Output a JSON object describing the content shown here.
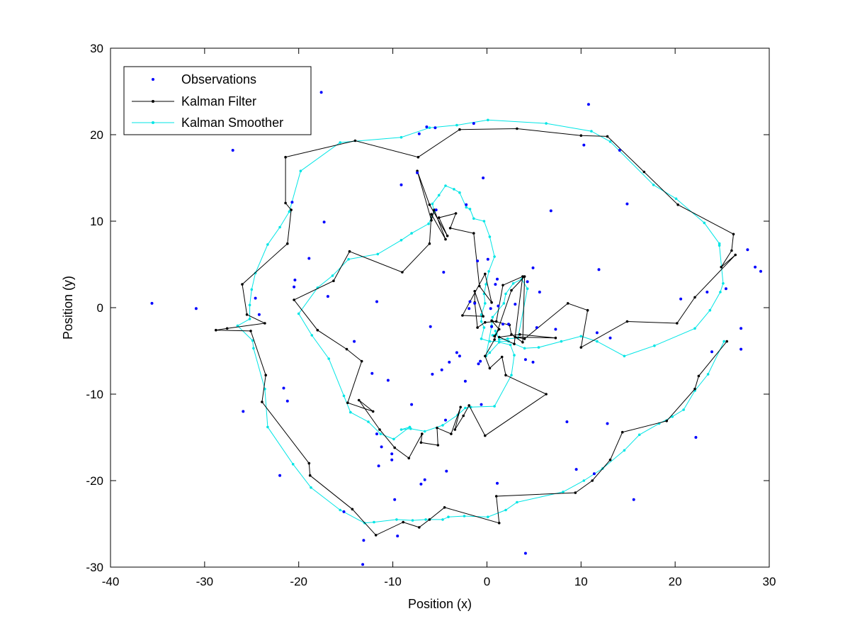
{
  "chart_data": {
    "type": "scatter",
    "xlabel": "Position (x)",
    "ylabel": "Position (y)",
    "xlim": [
      -40,
      30
    ],
    "ylim": [
      -30,
      30
    ],
    "xticks": [
      -40,
      -30,
      -20,
      -10,
      0,
      10,
      20,
      30
    ],
    "yticks": [
      -30,
      -20,
      -10,
      0,
      10,
      20,
      30
    ],
    "grid": false,
    "legend_position": "top-left",
    "legend": [
      "Observations",
      "Kalman Filter",
      "Kalman Smoother"
    ],
    "colors": {
      "observations": "#0000ff",
      "filter": "#000000",
      "smoother": "#00e5e5"
    },
    "observations": [
      [
        -35.6,
        0.5
      ],
      [
        -30.9,
        -0.1
      ],
      [
        -27.0,
        18.2
      ],
      [
        -25.9,
        -12.0
      ],
      [
        -24.6,
        1.1
      ],
      [
        -24.2,
        -0.8
      ],
      [
        -22.0,
        -19.4
      ],
      [
        -21.6,
        -9.3
      ],
      [
        -21.2,
        -10.8
      ],
      [
        -20.7,
        12.2
      ],
      [
        -20.4,
        3.2
      ],
      [
        -20.5,
        2.4
      ],
      [
        -18.9,
        5.7
      ],
      [
        -17.6,
        24.9
      ],
      [
        -17.3,
        9.9
      ],
      [
        -16.9,
        1.3
      ],
      [
        -15.2,
        -23.6
      ],
      [
        -14.1,
        -3.9
      ],
      [
        -13.2,
        -29.7
      ],
      [
        -13.1,
        -26.9
      ],
      [
        -12.2,
        -7.6
      ],
      [
        -11.7,
        -14.6
      ],
      [
        -11.7,
        0.7
      ],
      [
        -11.5,
        -18.3
      ],
      [
        -11.2,
        -16.1
      ],
      [
        -10.5,
        -8.4
      ],
      [
        -10.1,
        -17.6
      ],
      [
        -10.1,
        -16.9
      ],
      [
        -9.8,
        -22.2
      ],
      [
        -9.5,
        -26.4
      ],
      [
        -9.1,
        14.2
      ],
      [
        -8.0,
        -11.2
      ],
      [
        -7.4,
        15.6
      ],
      [
        -7.2,
        20.1
      ],
      [
        -7.0,
        -20.4
      ],
      [
        -6.6,
        -19.9
      ],
      [
        -6.4,
        20.9
      ],
      [
        -6.0,
        -2.2
      ],
      [
        -5.8,
        -7.7
      ],
      [
        -5.5,
        20.8
      ],
      [
        -5.4,
        11.3
      ],
      [
        -4.8,
        -7.2
      ],
      [
        -4.6,
        4.1
      ],
      [
        -4.4,
        -13.0
      ],
      [
        -4.3,
        -18.9
      ],
      [
        -4.0,
        -6.3
      ],
      [
        -3.2,
        -5.2
      ],
      [
        -2.9,
        -5.6
      ],
      [
        -2.3,
        -8.5
      ],
      [
        -2.2,
        11.9
      ],
      [
        -1.9,
        -0.1
      ],
      [
        -1.8,
        0.7
      ],
      [
        -1.4,
        21.3
      ],
      [
        -1.3,
        0.5
      ],
      [
        -1.0,
        5.4
      ],
      [
        -0.9,
        -6.5
      ],
      [
        -0.7,
        -6.2
      ],
      [
        -0.6,
        -11.2
      ],
      [
        -0.4,
        15.0
      ],
      [
        0.1,
        5.6
      ],
      [
        0.4,
        -0.1
      ],
      [
        0.5,
        -2.2
      ],
      [
        0.9,
        2.7
      ],
      [
        1.1,
        3.3
      ],
      [
        1.1,
        -20.3
      ],
      [
        1.2,
        0.2
      ],
      [
        1.7,
        -1.9
      ],
      [
        2.3,
        -1.9
      ],
      [
        3.0,
        0.4
      ],
      [
        4.1,
        -28.4
      ],
      [
        4.1,
        -6.0
      ],
      [
        4.3,
        3.0
      ],
      [
        4.9,
        4.6
      ],
      [
        4.9,
        -6.3
      ],
      [
        5.3,
        -2.3
      ],
      [
        5.6,
        1.8
      ],
      [
        6.8,
        11.2
      ],
      [
        7.3,
        -2.5
      ],
      [
        8.5,
        -13.2
      ],
      [
        9.5,
        -18.7
      ],
      [
        10.3,
        18.8
      ],
      [
        10.8,
        23.5
      ],
      [
        11.4,
        -19.2
      ],
      [
        11.7,
        -2.9
      ],
      [
        11.9,
        4.4
      ],
      [
        12.8,
        -13.4
      ],
      [
        13.1,
        -3.5
      ],
      [
        14.1,
        18.2
      ],
      [
        14.9,
        12.0
      ],
      [
        15.6,
        -22.2
      ],
      [
        20.6,
        1.0
      ],
      [
        22.2,
        -15.0
      ],
      [
        23.4,
        1.8
      ],
      [
        23.9,
        -5.1
      ],
      [
        25.4,
        2.2
      ],
      [
        27.0,
        -2.4
      ],
      [
        27.0,
        -4.8
      ],
      [
        27.7,
        6.7
      ],
      [
        28.5,
        4.7
      ],
      [
        29.1,
        4.2
      ]
    ],
    "filter": [
      [
        0.8,
        -3.3
      ],
      [
        1.3,
        -2.5
      ],
      [
        0.5,
        -1.5
      ],
      [
        2.4,
        -2.0
      ],
      [
        2.6,
        -3.1
      ],
      [
        3.8,
        -4.0
      ],
      [
        4.0,
        3.6
      ],
      [
        2.6,
        2.0
      ],
      [
        0.8,
        -3.7
      ],
      [
        -0.2,
        -5.6
      ],
      [
        0.3,
        -7.0
      ],
      [
        1.6,
        -5.7
      ],
      [
        2.0,
        -7.8
      ],
      [
        6.3,
        -10.0
      ],
      [
        -0.2,
        -14.8
      ],
      [
        -1.9,
        -11.3
      ],
      [
        -2.5,
        -12.5
      ],
      [
        -3.4,
        -14.1
      ],
      [
        -2.8,
        -11.5
      ],
      [
        -3.8,
        -14.6
      ],
      [
        -5.3,
        -13.9
      ],
      [
        -5.2,
        -15.9
      ],
      [
        -7.0,
        -15.6
      ],
      [
        -6.9,
        -14.6
      ],
      [
        -8.3,
        -17.4
      ],
      [
        -9.8,
        -16.2
      ],
      [
        -11.4,
        -14.1
      ],
      [
        -13.6,
        -10.7
      ],
      [
        -12.1,
        -12.0
      ],
      [
        -14.8,
        -11.0
      ],
      [
        -13.3,
        -6.2
      ],
      [
        -14.9,
        -4.8
      ],
      [
        -18.0,
        -2.6
      ],
      [
        -20.5,
        0.9
      ],
      [
        -16.3,
        3.1
      ],
      [
        -14.6,
        6.5
      ],
      [
        -9.0,
        4.1
      ],
      [
        -6.1,
        7.4
      ],
      [
        -5.9,
        10.8
      ],
      [
        -4.4,
        7.9
      ],
      [
        -5.6,
        11.3
      ],
      [
        -5.9,
        10.1
      ],
      [
        -7.4,
        15.8
      ],
      [
        -6.1,
        11.9
      ],
      [
        -4.2,
        8.3
      ],
      [
        -5.1,
        10.4
      ],
      [
        -3.3,
        10.9
      ],
      [
        -3.9,
        9.2
      ],
      [
        -1.4,
        8.6
      ],
      [
        -0.8,
        2.5
      ],
      [
        0.5,
        0.6
      ],
      [
        -0.2,
        3.9
      ],
      [
        -2.6,
        -0.9
      ],
      [
        -0.4,
        -1.0
      ],
      [
        -1.3,
        1.9
      ],
      [
        -1.3,
        0.6
      ],
      [
        -1.0,
        -2.3
      ],
      [
        -0.2,
        -1.7
      ],
      [
        1.0,
        -1.6
      ],
      [
        1.7,
        2.6
      ],
      [
        3.8,
        3.6
      ],
      [
        2.9,
        -4.2
      ],
      [
        1.3,
        -3.4
      ],
      [
        3.5,
        -3.1
      ],
      [
        7.3,
        -3.5
      ],
      [
        3.0,
        -3.4
      ],
      [
        4.0,
        -3.6
      ],
      [
        8.6,
        0.5
      ],
      [
        10.7,
        -0.3
      ],
      [
        10.0,
        -4.6
      ],
      [
        14.9,
        -1.6
      ],
      [
        20.2,
        -1.8
      ],
      [
        22.1,
        1.2
      ],
      [
        26.4,
        6.1
      ],
      [
        24.9,
        4.7
      ],
      [
        26.0,
        6.6
      ],
      [
        26.2,
        8.5
      ],
      [
        20.3,
        11.9
      ],
      [
        16.7,
        15.7
      ],
      [
        12.8,
        19.8
      ],
      [
        10.0,
        19.9
      ],
      [
        3.2,
        20.7
      ],
      [
        -2.9,
        20.6
      ],
      [
        -7.3,
        17.4
      ],
      [
        -14.0,
        19.3
      ],
      [
        -21.4,
        17.4
      ],
      [
        -21.4,
        12.1
      ],
      [
        -20.8,
        11.3
      ],
      [
        -21.2,
        7.4
      ],
      [
        -26.0,
        2.7
      ],
      [
        -25.5,
        -0.8
      ],
      [
        -23.6,
        -1.8
      ],
      [
        -27.6,
        -2.4
      ],
      [
        -28.8,
        -2.6
      ],
      [
        -25.1,
        -2.7
      ],
      [
        -23.5,
        -7.8
      ],
      [
        -23.9,
        -10.9
      ],
      [
        -18.9,
        -18.0
      ],
      [
        -18.8,
        -19.4
      ],
      [
        -14.3,
        -23.3
      ],
      [
        -11.8,
        -26.3
      ],
      [
        -8.9,
        -24.8
      ],
      [
        -7.2,
        -25.4
      ],
      [
        -6.1,
        -24.5
      ],
      [
        -4.5,
        -23.1
      ],
      [
        1.3,
        -24.9
      ],
      [
        1.0,
        -21.8
      ],
      [
        9.4,
        -21.4
      ],
      [
        11.2,
        -20.0
      ],
      [
        13.1,
        -17.6
      ],
      [
        14.4,
        -14.4
      ],
      [
        19.1,
        -13.1
      ],
      [
        22.1,
        -9.4
      ],
      [
        22.5,
        -7.9
      ],
      [
        25.5,
        -3.9
      ]
    ],
    "smoother": [
      [
        0.6,
        -3.2
      ],
      [
        1.0,
        -3.0
      ],
      [
        0.9,
        -2.7
      ],
      [
        1.3,
        -3.7
      ],
      [
        2.2,
        -3.6
      ],
      [
        3.3,
        -3.5
      ],
      [
        4.3,
        2.2
      ],
      [
        3.7,
        3.3
      ],
      [
        2.8,
        2.8
      ],
      [
        2.0,
        1.6
      ],
      [
        1.8,
        0.5
      ],
      [
        0.6,
        -1.1
      ],
      [
        0.5,
        -2.1
      ],
      [
        -0.1,
        -5.6
      ],
      [
        0.3,
        -5.2
      ],
      [
        1.3,
        -4.0
      ],
      [
        2.5,
        -4.3
      ],
      [
        2.9,
        -5.5
      ],
      [
        2.6,
        -7.8
      ],
      [
        0.8,
        -11.4
      ],
      [
        -1.7,
        -11.5
      ],
      [
        -2.3,
        -11.6
      ],
      [
        -3.1,
        -12.4
      ],
      [
        -4.7,
        -13.6
      ],
      [
        -6.6,
        -14.3
      ],
      [
        -8.1,
        -14.0
      ],
      [
        -9.1,
        -14.1
      ],
      [
        -8.2,
        -13.8
      ],
      [
        -9.9,
        -15.2
      ],
      [
        -11.3,
        -14.6
      ],
      [
        -12.6,
        -13.2
      ],
      [
        -14.5,
        -12.1
      ],
      [
        -15.2,
        -10.2
      ],
      [
        -16.8,
        -5.9
      ],
      [
        -18.6,
        -3.2
      ],
      [
        -20.0,
        -0.7
      ],
      [
        -18.0,
        2.3
      ],
      [
        -16.4,
        3.7
      ],
      [
        -14.7,
        5.6
      ],
      [
        -11.6,
        6.2
      ],
      [
        -9.1,
        7.8
      ],
      [
        -8.0,
        8.6
      ],
      [
        -6.2,
        9.7
      ],
      [
        -5.6,
        11.1
      ],
      [
        -5.8,
        12.0
      ],
      [
        -5.1,
        13.0
      ],
      [
        -4.4,
        14.1
      ],
      [
        -3.5,
        13.7
      ],
      [
        -2.9,
        13.3
      ],
      [
        -2.2,
        11.6
      ],
      [
        -1.8,
        11.4
      ],
      [
        -1.4,
        10.3
      ],
      [
        -0.3,
        10.0
      ],
      [
        0.3,
        8.2
      ],
      [
        0.8,
        5.9
      ],
      [
        0.2,
        4.2
      ],
      [
        -0.1,
        2.7
      ],
      [
        -0.3,
        1.6
      ],
      [
        -0.2,
        0.5
      ],
      [
        -0.6,
        -0.8
      ],
      [
        -0.6,
        -1.6
      ],
      [
        -0.3,
        -2.3
      ],
      [
        -0.6,
        -3.6
      ],
      [
        0.3,
        -3.9
      ],
      [
        2.3,
        -3.9
      ],
      [
        4.0,
        -4.7
      ],
      [
        5.5,
        -4.6
      ],
      [
        7.9,
        -3.9
      ],
      [
        10.0,
        -3.3
      ],
      [
        11.7,
        -3.9
      ],
      [
        14.6,
        -5.6
      ],
      [
        17.8,
        -4.4
      ],
      [
        22.1,
        -2.4
      ],
      [
        23.7,
        -0.3
      ],
      [
        24.8,
        1.8
      ],
      [
        25.1,
        2.8
      ],
      [
        24.7,
        7.2
      ],
      [
        24.7,
        7.4
      ],
      [
        23.1,
        9.8
      ],
      [
        20.1,
        12.6
      ],
      [
        17.7,
        14.2
      ],
      [
        13.1,
        19.2
      ],
      [
        11.1,
        20.4
      ],
      [
        6.3,
        21.3
      ],
      [
        0.1,
        21.7
      ],
      [
        -3.2,
        21.1
      ],
      [
        -6.1,
        20.8
      ],
      [
        -9.1,
        19.7
      ],
      [
        -15.6,
        19.1
      ],
      [
        -19.8,
        15.8
      ],
      [
        -21.0,
        11.1
      ],
      [
        -22.0,
        9.3
      ],
      [
        -23.3,
        7.3
      ],
      [
        -24.6,
        4.0
      ],
      [
        -25.0,
        2.1
      ],
      [
        -25.2,
        0.3
      ],
      [
        -25.2,
        -1.3
      ],
      [
        -26.5,
        -2.1
      ],
      [
        -24.9,
        -3.8
      ],
      [
        -24.8,
        -4.7
      ],
      [
        -23.6,
        -9.4
      ],
      [
        -23.3,
        -13.8
      ],
      [
        -20.6,
        -18.1
      ],
      [
        -18.7,
        -20.8
      ],
      [
        -15.6,
        -23.4
      ],
      [
        -13.0,
        -24.9
      ],
      [
        -12.0,
        -24.8
      ],
      [
        -9.6,
        -24.5
      ],
      [
        -7.9,
        -24.6
      ],
      [
        -6.5,
        -24.5
      ],
      [
        -4.7,
        -24.5
      ],
      [
        -4.1,
        -24.2
      ],
      [
        -2.4,
        -24.1
      ],
      [
        0.1,
        -24.2
      ],
      [
        2.0,
        -23.4
      ],
      [
        3.2,
        -22.5
      ],
      [
        8.1,
        -21.3
      ],
      [
        10.3,
        -20.0
      ],
      [
        12.3,
        -18.6
      ],
      [
        14.6,
        -16.5
      ],
      [
        16.2,
        -14.7
      ],
      [
        18.3,
        -13.4
      ],
      [
        19.7,
        -12.6
      ],
      [
        20.9,
        -11.8
      ],
      [
        22.1,
        -9.6
      ],
      [
        23.5,
        -7.7
      ],
      [
        25.2,
        -3.9
      ]
    ]
  }
}
